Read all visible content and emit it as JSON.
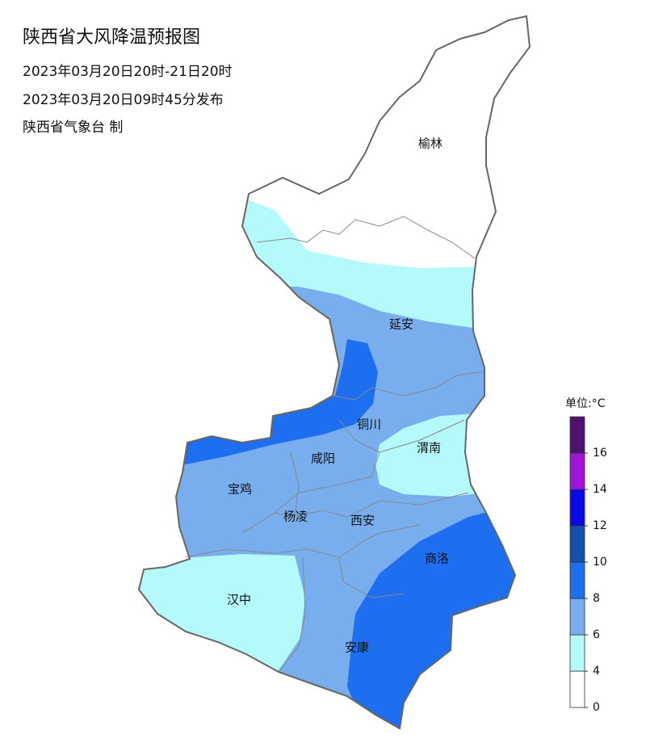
{
  "header": {
    "title": "陕西省大风降温预报图",
    "period": "2023年03月20日20时-21日20时",
    "issued": "2023年03月20日09时45分发布",
    "source": "陕西省气象台 制"
  },
  "cities": [
    "榆林",
    "延安",
    "铜川",
    "渭南",
    "咸阳",
    "宝鸡",
    "杨凌",
    "西安",
    "商洛",
    "汉中",
    "安康"
  ],
  "legend": {
    "unit": "单位:°C",
    "ticks": [
      0,
      4,
      6,
      8,
      10,
      12,
      14,
      16
    ],
    "colors": [
      "#ffffff",
      "#b4fafa",
      "#78aeee",
      "#1e6ef0",
      "#1450aa",
      "#0a0ae6",
      "#a014dc",
      "#50106e"
    ]
  }
}
